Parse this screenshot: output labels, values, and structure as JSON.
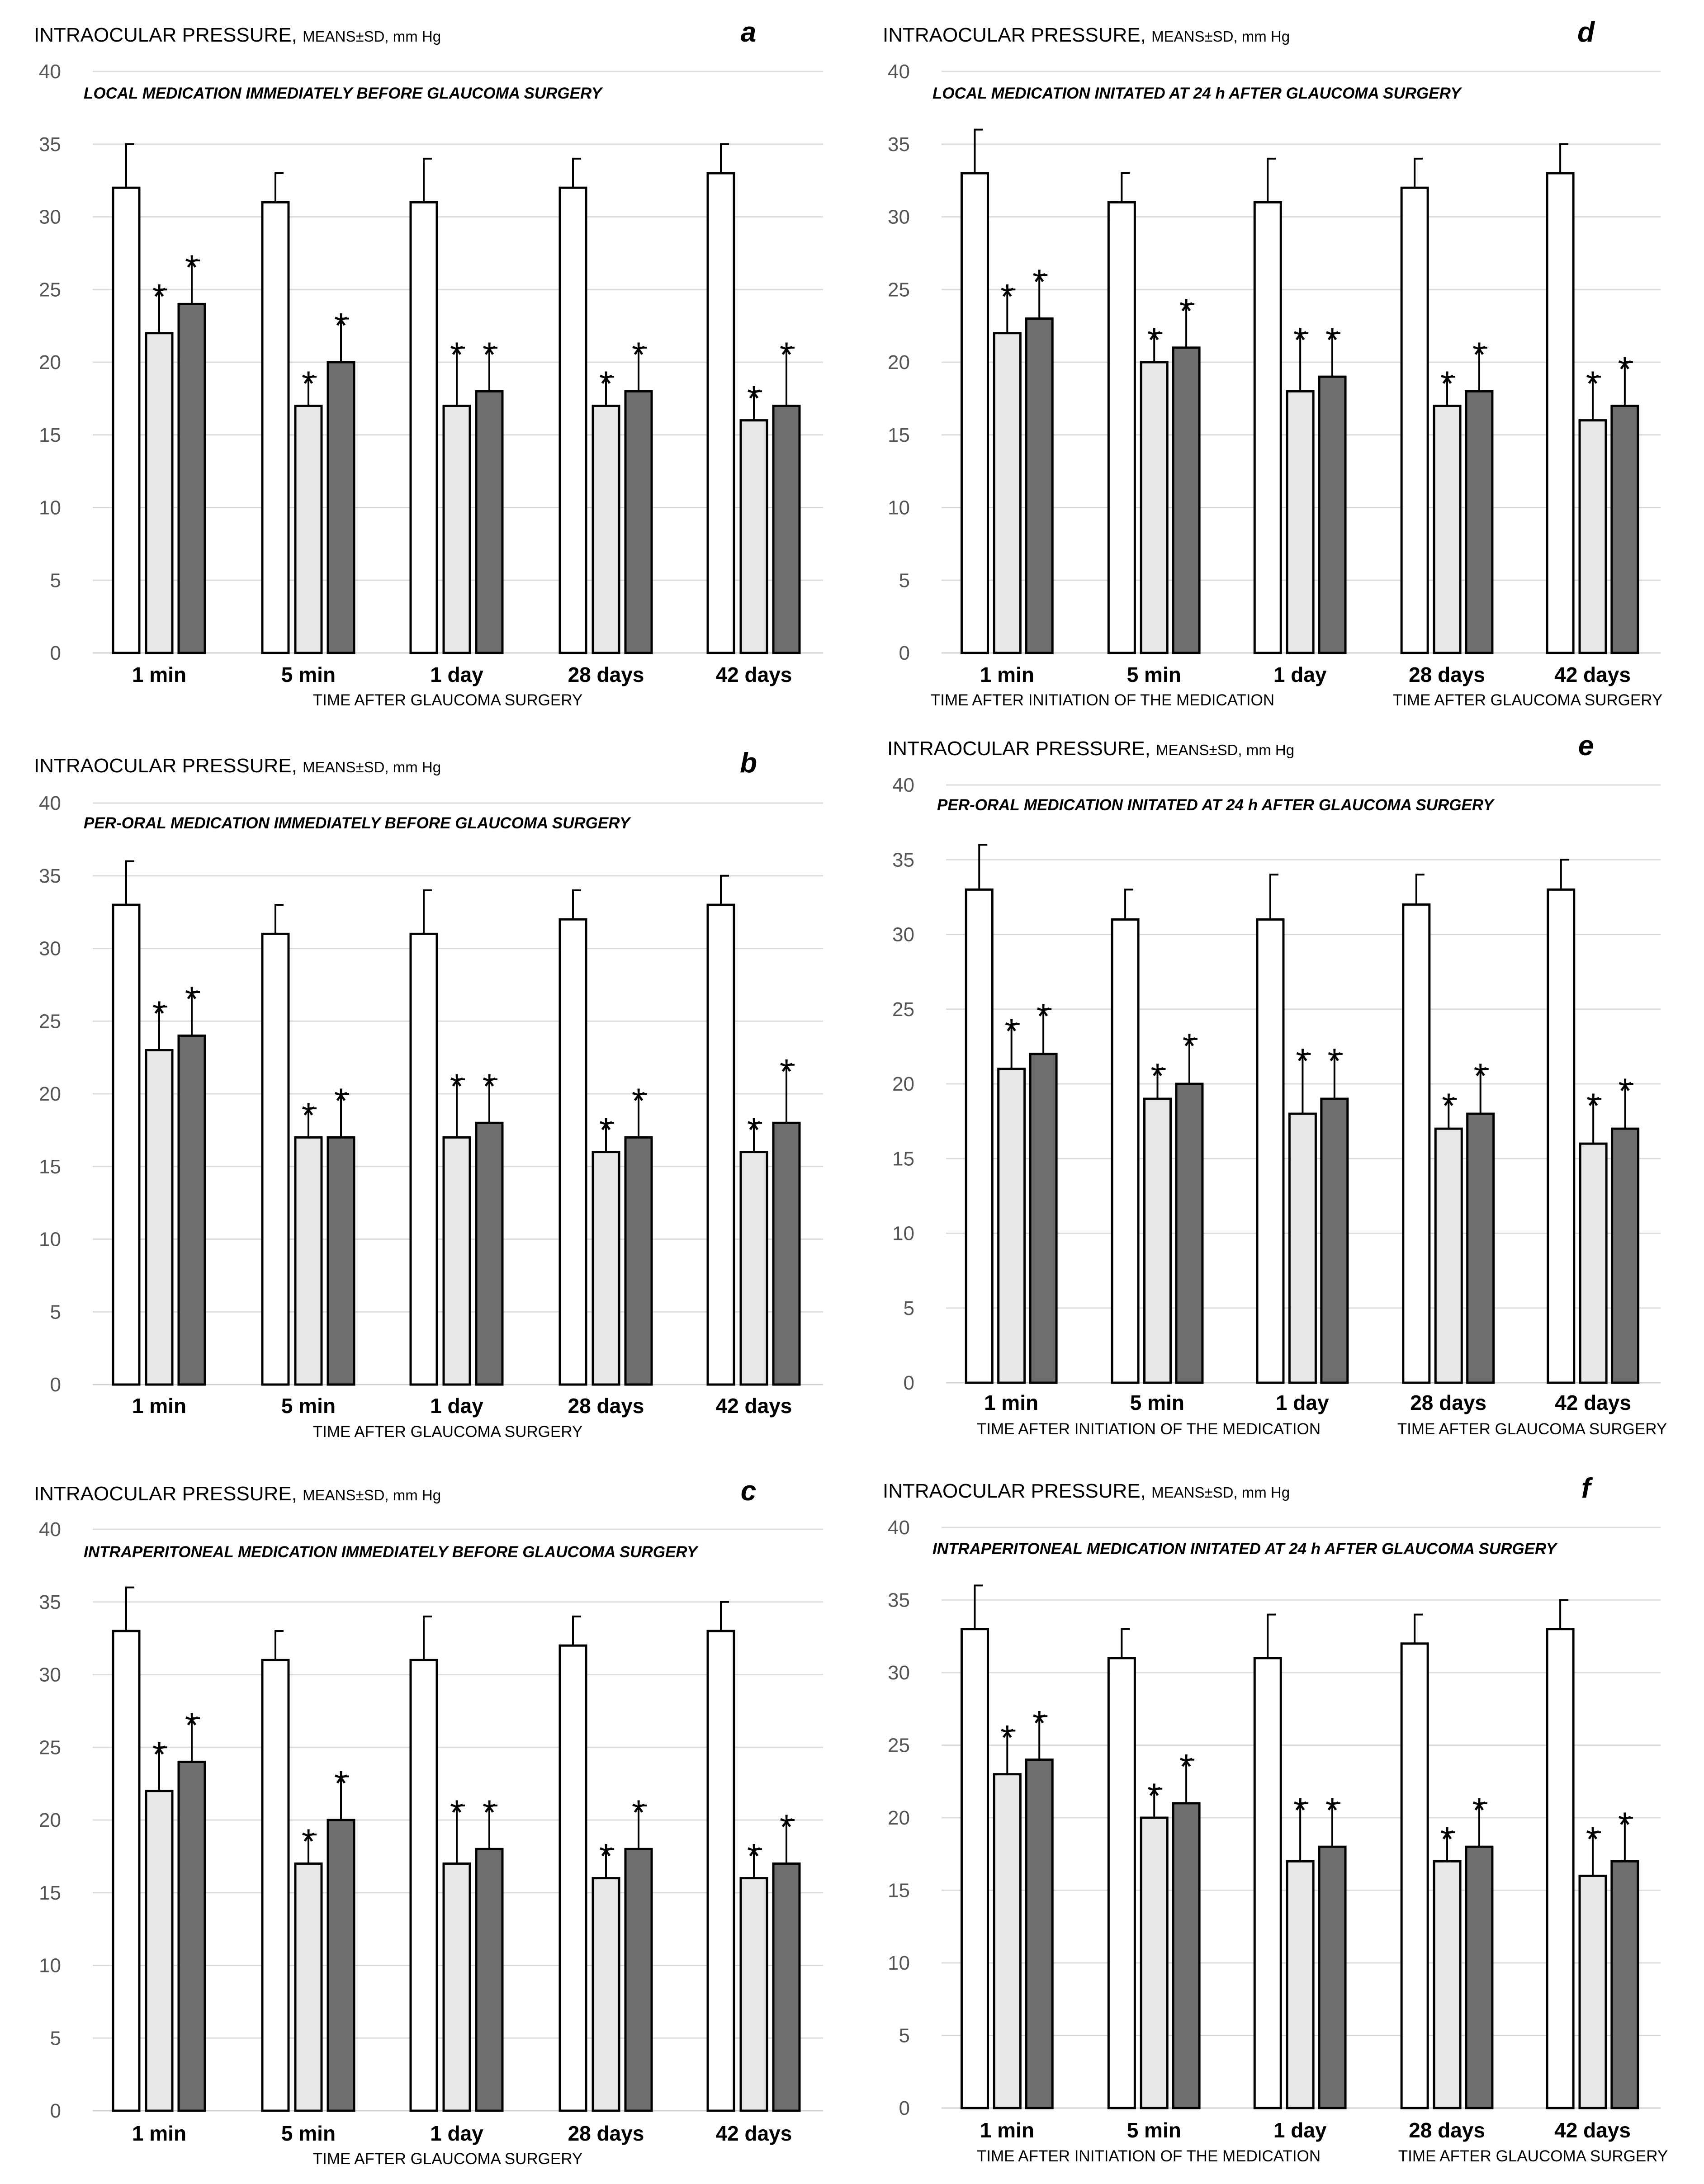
{
  "chart_data": [
    {
      "panel": "a",
      "type": "bar",
      "y_title_main": "INTRAOCULAR PRESSURE, ",
      "y_title_small": "MEANS±SD, mm Hg",
      "subtitle": "LOCAL MEDICATION IMMEDIATELY BEFORE GLAUCOMA SURGERY",
      "x_titles": [
        "TIME AFTER GLAUCOMA SURGERY"
      ],
      "categories": [
        "1 min",
        "5 min",
        "1 day",
        "28 days",
        "42 days"
      ],
      "ylim": [
        0,
        40
      ],
      "yticks": [
        0,
        5,
        10,
        15,
        20,
        25,
        30,
        35,
        40
      ],
      "series": [
        {
          "name": "white",
          "color": "#ffffff",
          "values": [
            32,
            31,
            31,
            32,
            33
          ],
          "sd": [
            3,
            2,
            3,
            2,
            2
          ],
          "star": [
            false,
            false,
            false,
            false,
            false
          ]
        },
        {
          "name": "light",
          "color": "#e8e8e8",
          "values": [
            22,
            17,
            17,
            17,
            16
          ],
          "sd": [
            3,
            2,
            4,
            2,
            2
          ],
          "star": [
            true,
            true,
            true,
            true,
            true
          ]
        },
        {
          "name": "dark",
          "color": "#6e6e6e",
          "values": [
            24,
            20,
            18,
            18,
            17
          ],
          "sd": [
            3,
            3,
            3,
            3,
            4
          ],
          "star": [
            true,
            true,
            true,
            true,
            true
          ]
        }
      ]
    },
    {
      "panel": "b",
      "type": "bar",
      "y_title_main": "INTRAOCULAR PRESSURE, ",
      "y_title_small": "MEANS±SD, mm Hg",
      "subtitle": "PER-ORAL MEDICATION IMMEDIATELY BEFORE GLAUCOMA SURGERY",
      "x_titles": [
        "TIME AFTER GLAUCOMA SURGERY"
      ],
      "categories": [
        "1 min",
        "5 min",
        "1 day",
        "28 days",
        "42 days"
      ],
      "ylim": [
        0,
        40
      ],
      "yticks": [
        0,
        5,
        10,
        15,
        20,
        25,
        30,
        35,
        40
      ],
      "series": [
        {
          "name": "white",
          "color": "#ffffff",
          "values": [
            33,
            31,
            31,
            32,
            33
          ],
          "sd": [
            3,
            2,
            3,
            2,
            2
          ],
          "star": [
            false,
            false,
            false,
            false,
            false
          ]
        },
        {
          "name": "light",
          "color": "#e8e8e8",
          "values": [
            23,
            17,
            17,
            16,
            16
          ],
          "sd": [
            3,
            2,
            4,
            2,
            2
          ],
          "star": [
            true,
            true,
            true,
            true,
            true
          ]
        },
        {
          "name": "dark",
          "color": "#6e6e6e",
          "values": [
            24,
            17,
            18,
            17,
            18
          ],
          "sd": [
            3,
            3,
            3,
            3,
            4
          ],
          "star": [
            true,
            true,
            true,
            true,
            true
          ]
        }
      ]
    },
    {
      "panel": "c",
      "type": "bar",
      "y_title_main": "INTRAOCULAR PRESSURE, ",
      "y_title_small": "MEANS±SD, mm Hg",
      "subtitle": "INTRAPERITONEAL MEDICATION IMMEDIATELY BEFORE GLAUCOMA SURGERY",
      "x_titles": [
        "TIME AFTER GLAUCOMA SURGERY"
      ],
      "categories": [
        "1 min",
        "5 min",
        "1 day",
        "28 days",
        "42 days"
      ],
      "ylim": [
        0,
        40
      ],
      "yticks": [
        0,
        5,
        10,
        15,
        20,
        25,
        30,
        35,
        40
      ],
      "series": [
        {
          "name": "white",
          "color": "#ffffff",
          "values": [
            33,
            31,
            31,
            32,
            33
          ],
          "sd": [
            3,
            2,
            3,
            2,
            2
          ],
          "star": [
            false,
            false,
            false,
            false,
            false
          ]
        },
        {
          "name": "light",
          "color": "#e8e8e8",
          "values": [
            22,
            17,
            17,
            16,
            16
          ],
          "sd": [
            3,
            2,
            4,
            2,
            2
          ],
          "star": [
            true,
            true,
            true,
            true,
            true
          ]
        },
        {
          "name": "dark",
          "color": "#6e6e6e",
          "values": [
            24,
            20,
            18,
            18,
            17
          ],
          "sd": [
            3,
            3,
            3,
            3,
            3
          ],
          "star": [
            true,
            true,
            true,
            true,
            true
          ]
        }
      ]
    },
    {
      "panel": "d",
      "type": "bar",
      "y_title_main": "INTRAOCULAR PRESSURE, ",
      "y_title_small": "MEANS±SD, mm Hg",
      "subtitle": "LOCAL MEDICATION INITATED AT 24 h AFTER GLAUCOMA SURGERY",
      "x_titles": [
        "TIME AFTER INITIATION OF THE MEDICATION",
        "TIME AFTER GLAUCOMA SURGERY"
      ],
      "categories": [
        "1 min",
        "5 min",
        "1 day",
        "28 days",
        "42 days"
      ],
      "ylim": [
        0,
        40
      ],
      "yticks": [
        0,
        5,
        10,
        15,
        20,
        25,
        30,
        35,
        40
      ],
      "series": [
        {
          "name": "white",
          "color": "#ffffff",
          "values": [
            33,
            31,
            31,
            32,
            33
          ],
          "sd": [
            3,
            2,
            3,
            2,
            2
          ],
          "star": [
            false,
            false,
            false,
            false,
            false
          ]
        },
        {
          "name": "light",
          "color": "#e8e8e8",
          "values": [
            22,
            20,
            18,
            17,
            16
          ],
          "sd": [
            3,
            2,
            4,
            2,
            3
          ],
          "star": [
            true,
            true,
            true,
            true,
            true
          ]
        },
        {
          "name": "dark",
          "color": "#6e6e6e",
          "values": [
            23,
            21,
            19,
            18,
            17
          ],
          "sd": [
            3,
            3,
            3,
            3,
            3
          ],
          "star": [
            true,
            true,
            true,
            true,
            true
          ]
        }
      ]
    },
    {
      "panel": "e",
      "type": "bar",
      "y_title_main": "INTRAOCULAR PRESSURE, ",
      "y_title_small": "MEANS±SD, mm Hg",
      "subtitle": "PER-ORAL MEDICATION INITATED AT 24 h AFTER GLAUCOMA SURGERY",
      "x_titles": [
        "TIME AFTER INITIATION OF THE MEDICATION",
        "TIME AFTER GLAUCOMA SURGERY"
      ],
      "categories": [
        "1 min",
        "5 min",
        "1 day",
        "28 days",
        "42 days"
      ],
      "ylim": [
        0,
        40
      ],
      "yticks": [
        0,
        5,
        10,
        15,
        20,
        25,
        30,
        35,
        40
      ],
      "series": [
        {
          "name": "white",
          "color": "#ffffff",
          "values": [
            33,
            31,
            31,
            32,
            33
          ],
          "sd": [
            3,
            2,
            3,
            2,
            2
          ],
          "star": [
            false,
            false,
            false,
            false,
            false
          ]
        },
        {
          "name": "light",
          "color": "#e8e8e8",
          "values": [
            21,
            19,
            18,
            17,
            16
          ],
          "sd": [
            3,
            2,
            4,
            2,
            3
          ],
          "star": [
            true,
            true,
            true,
            true,
            true
          ]
        },
        {
          "name": "dark",
          "color": "#6e6e6e",
          "values": [
            22,
            20,
            19,
            18,
            17
          ],
          "sd": [
            3,
            3,
            3,
            3,
            3
          ],
          "star": [
            true,
            true,
            true,
            true,
            true
          ]
        }
      ]
    },
    {
      "panel": "f",
      "type": "bar",
      "y_title_main": "INTRAOCULAR PRESSURE, ",
      "y_title_small": "MEANS±SD, mm Hg",
      "subtitle": "INTRAPERITONEAL MEDICATION INITATED AT 24 h AFTER GLAUCOMA SURGERY",
      "x_titles": [
        "TIME AFTER INITIATION OF THE MEDICATION",
        "TIME AFTER GLAUCOMA SURGERY"
      ],
      "categories": [
        "1 min",
        "5 min",
        "1 day",
        "28 days",
        "42 days"
      ],
      "ylim": [
        0,
        40
      ],
      "yticks": [
        0,
        5,
        10,
        15,
        20,
        25,
        30,
        35,
        40
      ],
      "series": [
        {
          "name": "white",
          "color": "#ffffff",
          "values": [
            33,
            31,
            31,
            32,
            33
          ],
          "sd": [
            3,
            2,
            3,
            2,
            2
          ],
          "star": [
            false,
            false,
            false,
            false,
            false
          ]
        },
        {
          "name": "light",
          "color": "#e8e8e8",
          "values": [
            23,
            20,
            17,
            17,
            16
          ],
          "sd": [
            3,
            2,
            4,
            2,
            3
          ],
          "star": [
            true,
            true,
            true,
            true,
            true
          ]
        },
        {
          "name": "dark",
          "color": "#6e6e6e",
          "values": [
            24,
            21,
            18,
            18,
            17
          ],
          "sd": [
            3,
            3,
            3,
            3,
            3
          ],
          "star": [
            true,
            true,
            true,
            true,
            true
          ]
        }
      ]
    }
  ]
}
